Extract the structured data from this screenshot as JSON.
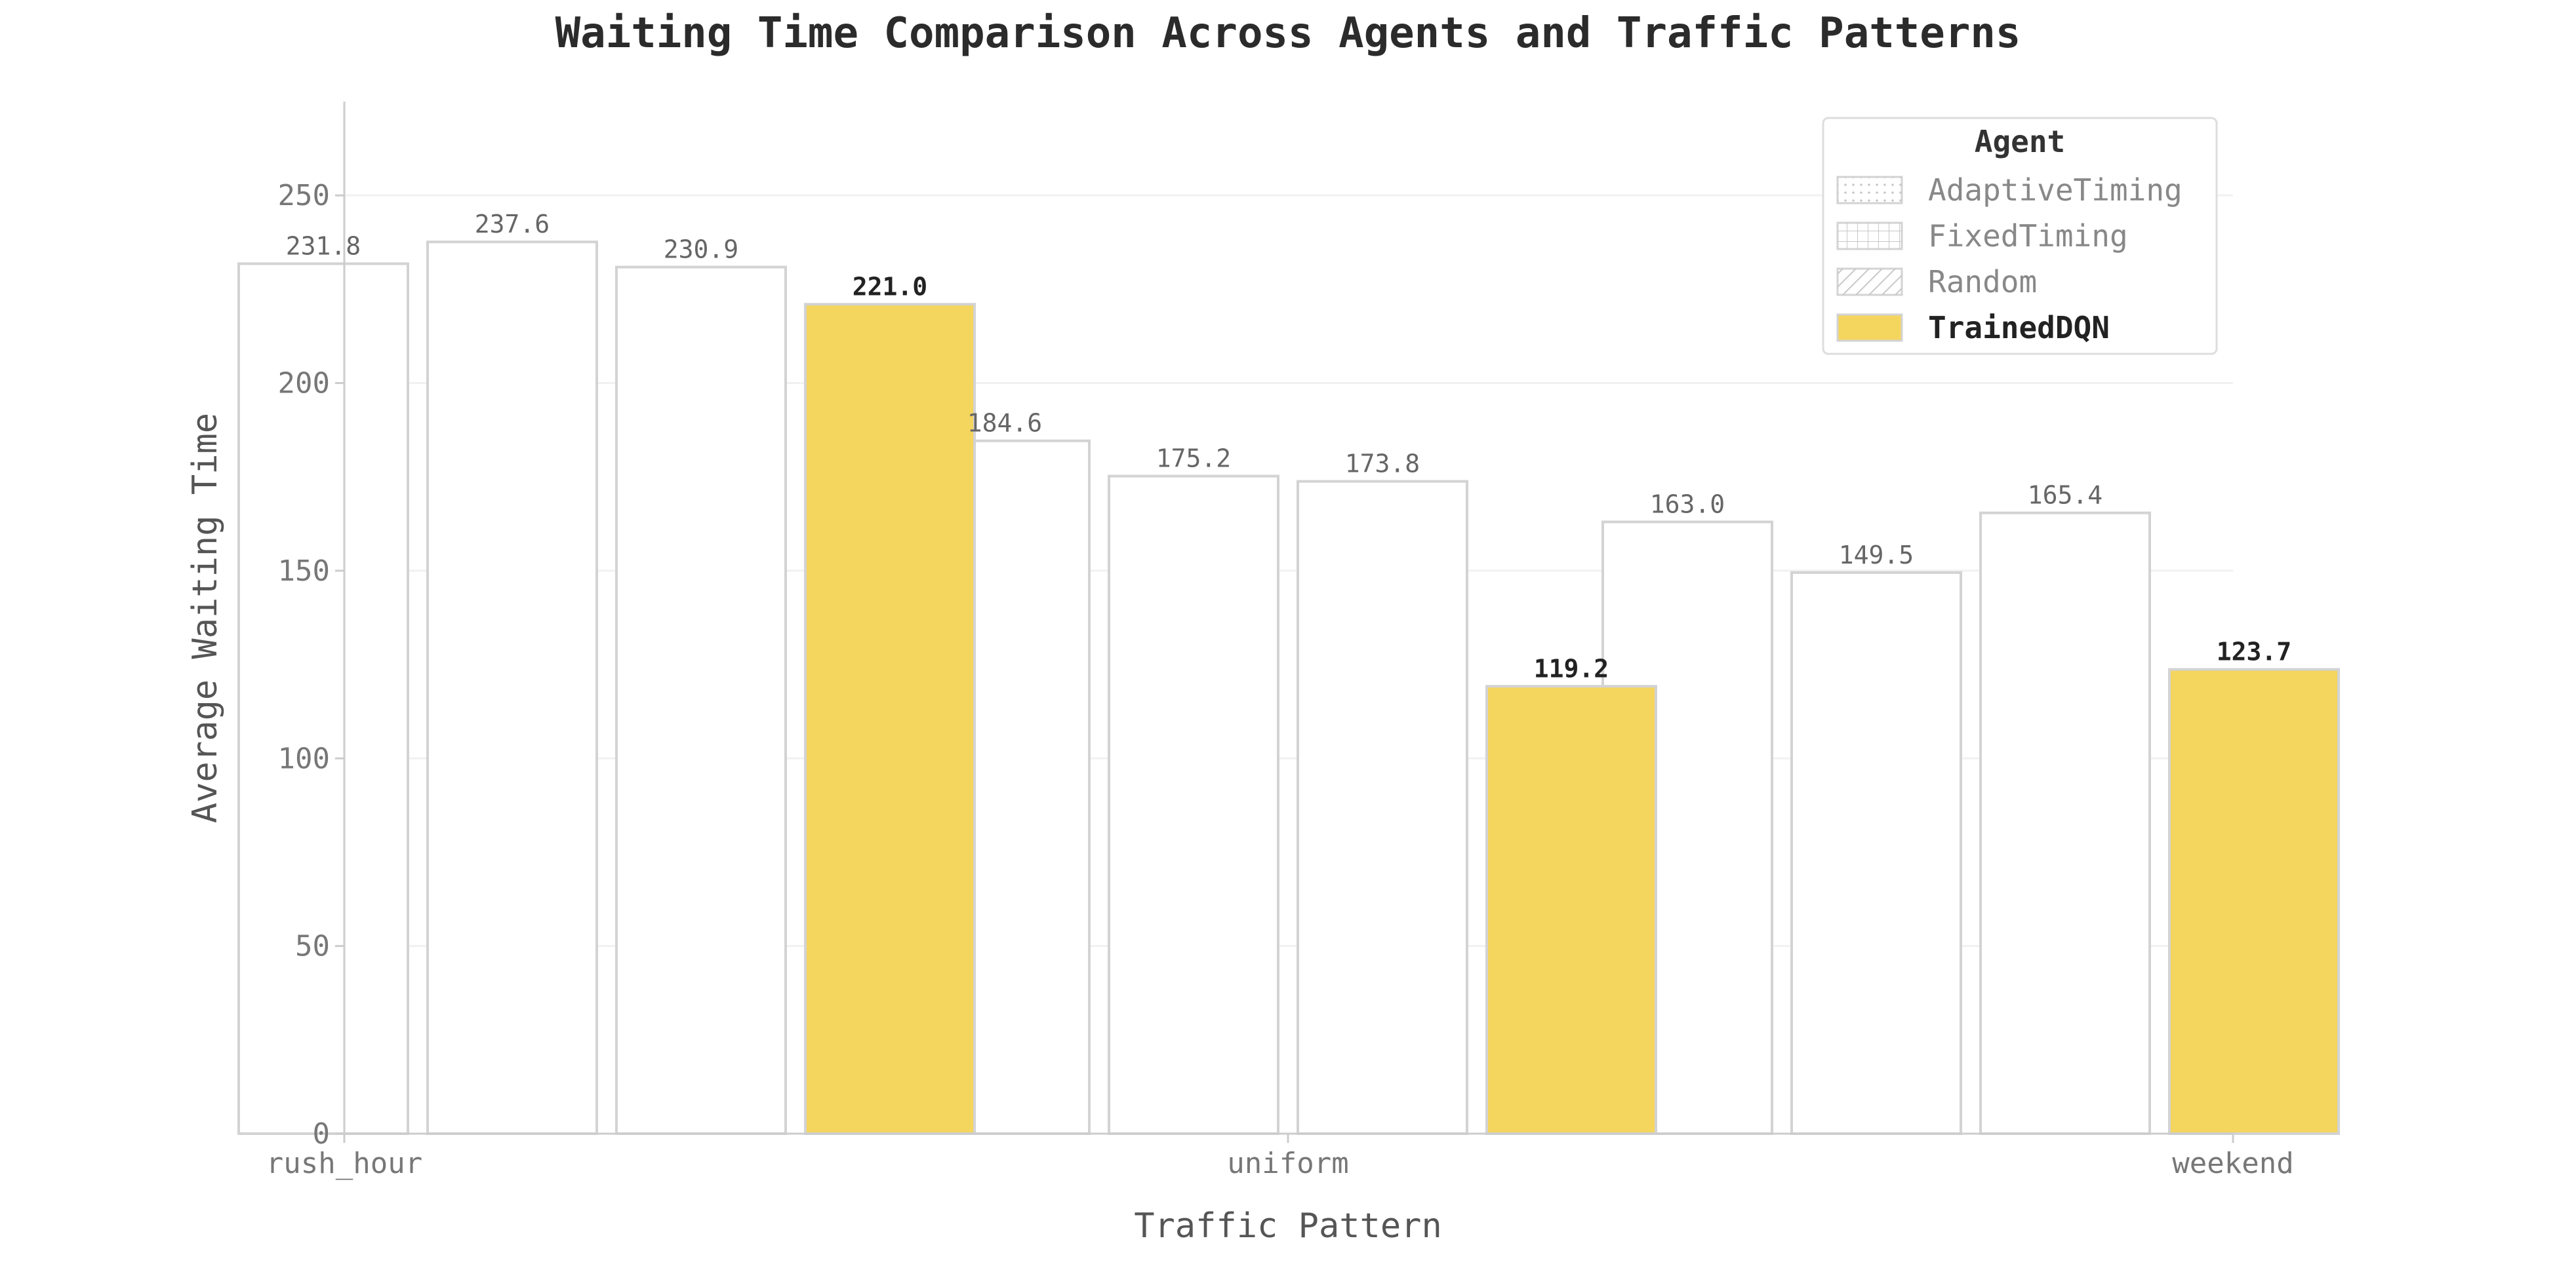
{
  "chart_data": {
    "type": "bar",
    "title": "Waiting Time Comparison Across Agents and Traffic Patterns",
    "xlabel": "Traffic Pattern",
    "ylabel": "Average Waiting Time",
    "categories": [
      "rush_hour",
      "uniform",
      "weekend"
    ],
    "yticks": [
      "0",
      "50",
      "100",
      "150",
      "200",
      "250"
    ],
    "ylim": [
      0,
      275
    ],
    "grid": true,
    "legend_title": "Agent",
    "legend_position": "top-right",
    "series": [
      {
        "name": "AdaptiveTiming",
        "pattern": "dotted",
        "values": [
          231.8,
          184.6,
          163.0
        ],
        "labels": [
          "231.8",
          "184.6",
          "163.0"
        ]
      },
      {
        "name": "FixedTiming",
        "pattern": "grid",
        "values": [
          237.6,
          175.2,
          149.5
        ],
        "labels": [
          "237.6",
          "175.2",
          "149.5"
        ]
      },
      {
        "name": "Random",
        "pattern": "hatched",
        "values": [
          230.9,
          173.8,
          165.4
        ],
        "labels": [
          "230.9",
          "173.8",
          "165.4"
        ]
      },
      {
        "name": "TrainedDQN",
        "pattern": "solid",
        "values": [
          221.0,
          119.2,
          123.7
        ],
        "labels": [
          "221.0",
          "119.2",
          "123.7"
        ]
      }
    ],
    "colors": {
      "highlight": "#f4d55e",
      "bar_edge": "#d3d3d3",
      "grid": "#f1f1f1",
      "axis": "#cccccc"
    }
  }
}
